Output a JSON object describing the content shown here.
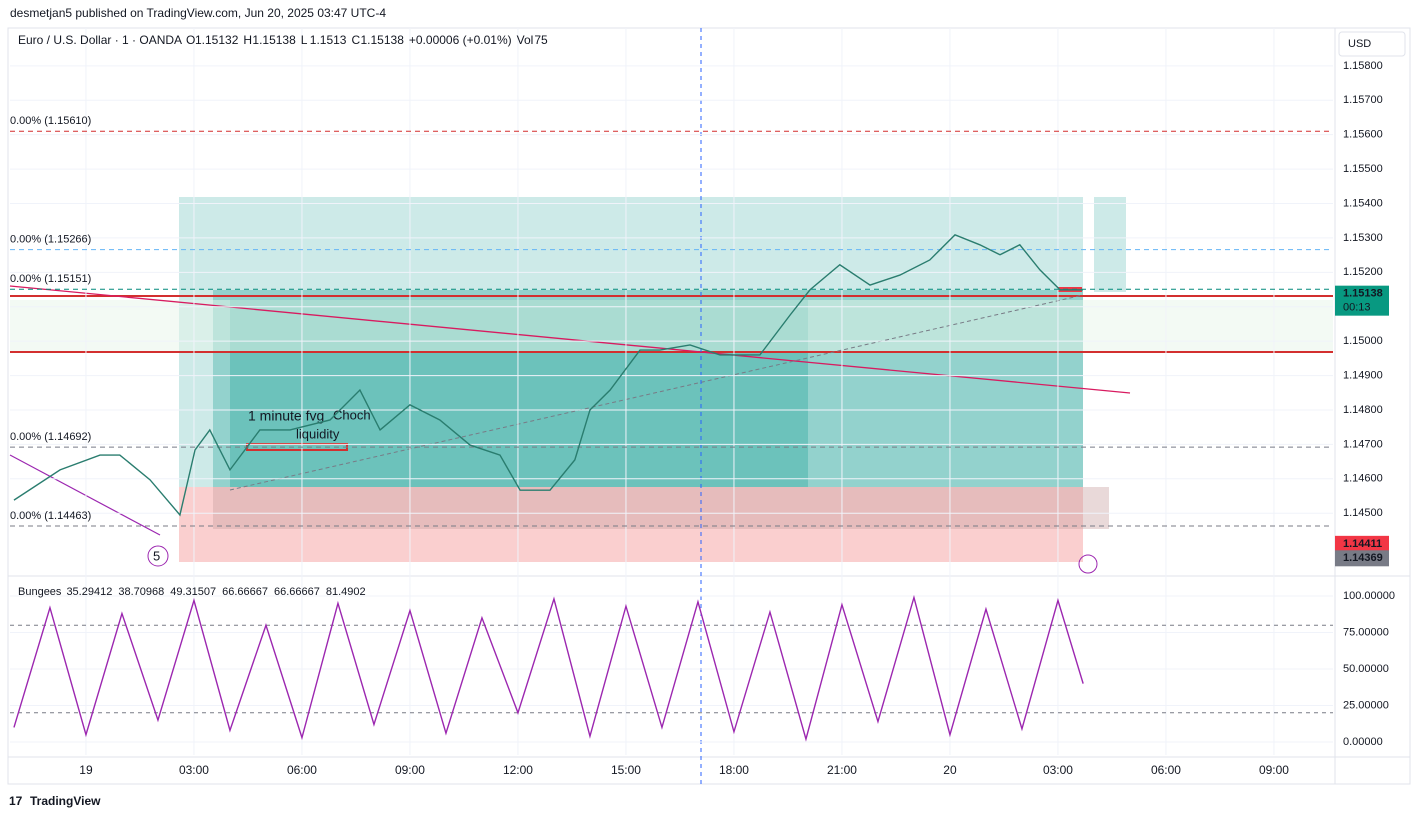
{
  "header": {
    "published": "desmetjan5 published on TradingView.com, Jun 20, 2025 03:47 UTC-4",
    "symbol": "Euro / U.S. Dollar · 1 · OANDA",
    "ohlc": [
      {
        "key": "O",
        "value": 1.15132
      },
      {
        "key": "H",
        "value": 1.15138
      },
      {
        "key": "L",
        "value": 1.1513
      },
      {
        "key": "C",
        "value": 1.15138
      }
    ],
    "change": "+0.00006 (+0.01%)",
    "volume": {
      "key": "Vol",
      "value": 75
    },
    "currency": "USD",
    "brand": "TradingView"
  },
  "chart_data": [
    {
      "type": "line",
      "color": "#2a7d6f",
      "x": [
        -2.0,
        -0.72,
        0.39,
        0.94,
        1.78,
        2.61,
        3.03,
        3.44,
        4.0,
        4.83,
        5.67,
        6.78,
        7.61,
        8.17,
        9.0,
        9.83,
        10.67,
        11.5,
        12.06,
        12.89,
        13.58,
        14.0,
        14.56,
        15.39,
        15.94,
        16.78,
        17.61,
        18.72,
        19.56,
        20.11,
        20.94,
        21.78,
        22.61,
        23.44,
        24.14,
        24.83,
        25.39,
        25.94,
        26.5,
        27.06,
        27.69
      ],
      "values": [
        1.14538,
        1.14626,
        1.14669,
        1.14669,
        1.14597,
        1.14495,
        1.14684,
        1.14742,
        1.14626,
        1.14742,
        1.14742,
        1.14771,
        1.14858,
        1.14742,
        1.14815,
        1.14771,
        1.14698,
        1.14669,
        1.14567,
        1.14567,
        1.14655,
        1.148,
        1.14858,
        1.14974,
        1.14974,
        1.14989,
        1.1496,
        1.1496,
        1.15076,
        1.15149,
        1.15222,
        1.15163,
        1.15192,
        1.15236,
        1.15309,
        1.1528,
        1.15251,
        1.1528,
        1.15207,
        1.15149,
        1.15149
      ],
      "xlim": [
        -2.11,
        34.64
      ],
      "xticks": [
        {
          "value": 0,
          "label": "19"
        },
        {
          "value": 3,
          "label": "03:00"
        },
        {
          "value": 6,
          "label": "06:00"
        },
        {
          "value": 9,
          "label": "09:00"
        },
        {
          "value": 12,
          "label": "12:00"
        },
        {
          "value": 15,
          "label": "15:00"
        },
        {
          "value": 18,
          "label": "18:00"
        },
        {
          "value": 21,
          "label": "21:00"
        },
        {
          "value": 24,
          "label": "20"
        },
        {
          "value": 27,
          "label": "03:00"
        },
        {
          "value": 30,
          "label": "06:00"
        },
        {
          "value": 33,
          "label": "09:00"
        }
      ],
      "ylim": [
        1.14335,
        1.1591
      ],
      "yticks": [
        {
          "value": 1.145,
          "label": "1.14500"
        },
        {
          "value": 1.146,
          "label": "1.14600"
        },
        {
          "value": 1.147,
          "label": "1.14700"
        },
        {
          "value": 1.148,
          "label": "1.14800"
        },
        {
          "value": 1.149,
          "label": "1.14900"
        },
        {
          "value": 1.15,
          "label": "1.15000"
        },
        {
          "value": 1.151,
          "label": "1.15100"
        },
        {
          "value": 1.152,
          "label": "1.15200"
        },
        {
          "value": 1.153,
          "label": "1.15300"
        },
        {
          "value": 1.154,
          "label": "1.15400"
        },
        {
          "value": 1.155,
          "label": "1.15500"
        },
        {
          "value": 1.156,
          "label": "1.15600"
        },
        {
          "value": 1.157,
          "label": "1.15700"
        },
        {
          "value": 1.158,
          "label": "1.15800"
        }
      ],
      "grid": true,
      "levels": [
        {
          "value": 1.1561,
          "label": "0.00% (1.15610)",
          "color": "#d32f2f"
        },
        {
          "value": 1.15266,
          "label": "0.00% (1.15266)",
          "color": "#64b5f6"
        },
        {
          "value": 1.15151,
          "label": "0.00% (1.15151)",
          "color": "#00897b"
        },
        {
          "value": 1.14692,
          "label": "0.00% (1.14692)",
          "color": "#787b86"
        },
        {
          "value": 1.14463,
          "label": "0.00% (1.14463)",
          "color": "#787b86"
        }
      ],
      "badges": [
        {
          "value": 1.15138,
          "color": "#089981",
          "sub": "00:13"
        },
        {
          "value": 1.14411,
          "color": "#f23645"
        },
        {
          "value": 1.14369,
          "color": "#787b86"
        }
      ],
      "annotations": [
        "1 minute fvg",
        "Choch",
        "liquidity",
        "5"
      ]
    },
    {
      "type": "line",
      "title": "Bungees",
      "color": "#9c27b0",
      "x": [
        -2,
        -1,
        0,
        1,
        2,
        3,
        4,
        5,
        6,
        7,
        8,
        9,
        10,
        11,
        12,
        13,
        14,
        15,
        16,
        17,
        18,
        19,
        20,
        21,
        22,
        23,
        24,
        25,
        26,
        27,
        27.7
      ],
      "values": [
        10,
        92,
        5,
        88,
        15,
        97,
        8,
        80,
        3,
        95,
        12,
        90,
        6,
        85,
        20,
        98,
        4,
        93,
        10,
        96,
        7,
        89,
        2,
        94,
        14,
        99,
        5,
        91,
        9,
        97,
        40
      ],
      "readout": [
        {
          "value": 35.29412,
          "color": "#f5a623"
        },
        {
          "value": 38.70968,
          "color": "#4caf50"
        },
        {
          "value": 49.31507,
          "color": "#2196f3"
        },
        {
          "value": 66.66667,
          "color": "#e91e63"
        },
        {
          "value": 66.66667,
          "color": "#e91e63"
        },
        {
          "value": 81.4902,
          "color": "#555555"
        }
      ],
      "xlim": [
        -2.11,
        34.64
      ],
      "ylim": [
        -8.9,
        109.6
      ],
      "yticks": [
        {
          "value": 0,
          "label": "0.00000"
        },
        {
          "value": 25,
          "label": "25.00000"
        },
        {
          "value": 50,
          "label": "50.00000"
        },
        {
          "value": 75,
          "label": "75.00000"
        },
        {
          "value": 100,
          "label": "100.00000"
        }
      ],
      "levels": [
        80,
        20
      ]
    }
  ]
}
